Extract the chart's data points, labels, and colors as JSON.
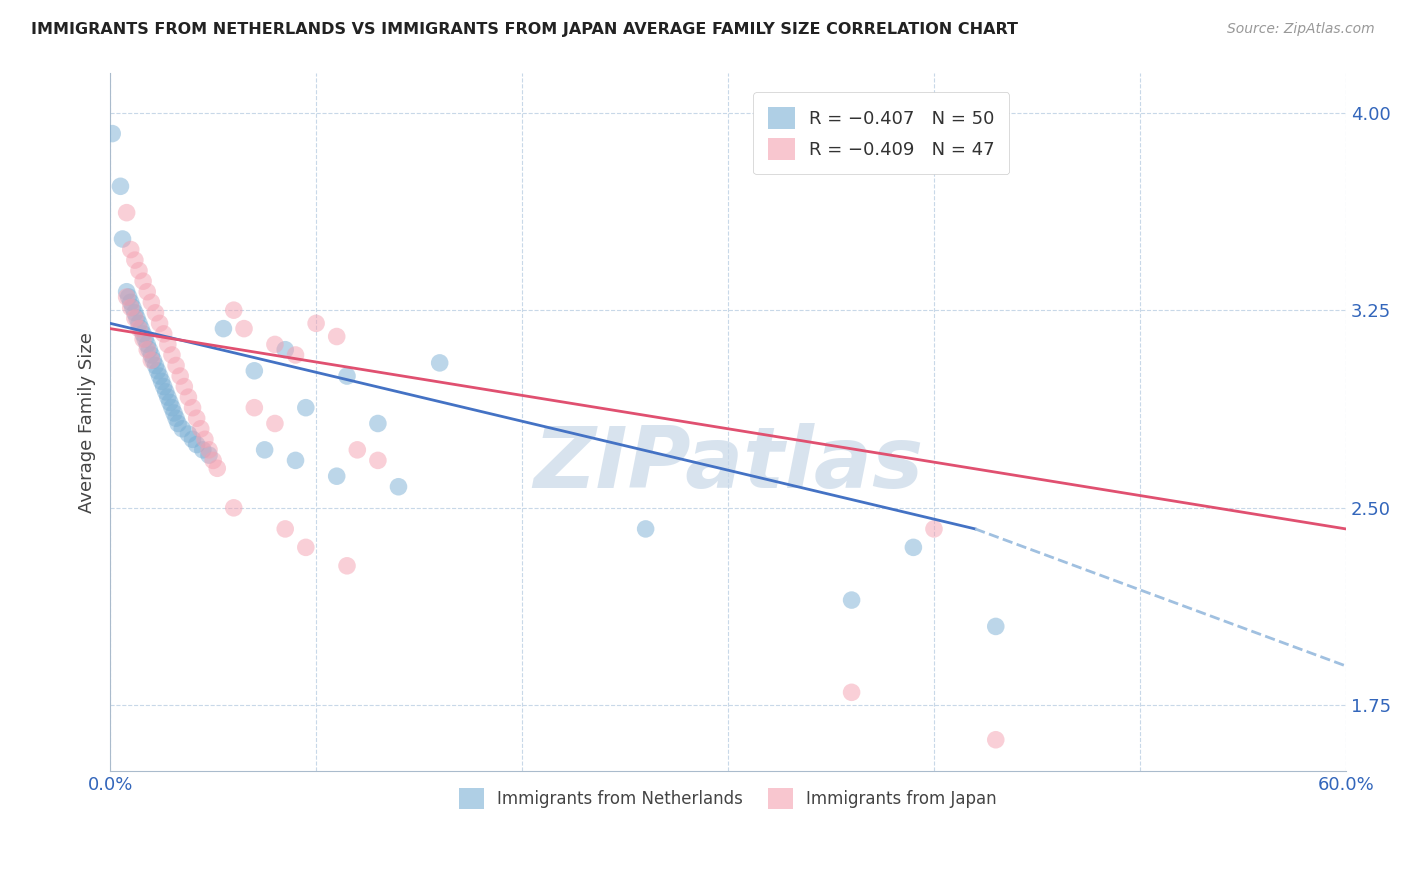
{
  "title": "IMMIGRANTS FROM NETHERLANDS VS IMMIGRANTS FROM JAPAN AVERAGE FAMILY SIZE CORRELATION CHART",
  "source": "Source: ZipAtlas.com",
  "ylabel": "Average Family Size",
  "netherlands_color": "#7BAFD4",
  "japan_color": "#F4A0B0",
  "netherlands_line_color": "#4472C4",
  "japan_line_color": "#E05070",
  "dashed_line_color": "#A0C0E0",
  "watermark": "ZIPatlas",
  "netherlands_scatter": [
    [
      0.001,
      3.92
    ],
    [
      0.005,
      3.72
    ],
    [
      0.006,
      3.52
    ],
    [
      0.008,
      3.32
    ],
    [
      0.009,
      3.3
    ],
    [
      0.01,
      3.28
    ],
    [
      0.011,
      3.26
    ],
    [
      0.012,
      3.24
    ],
    [
      0.013,
      3.22
    ],
    [
      0.014,
      3.2
    ],
    [
      0.015,
      3.18
    ],
    [
      0.016,
      3.16
    ],
    [
      0.017,
      3.14
    ],
    [
      0.018,
      3.12
    ],
    [
      0.019,
      3.1
    ],
    [
      0.02,
      3.08
    ],
    [
      0.021,
      3.06
    ],
    [
      0.022,
      3.04
    ],
    [
      0.023,
      3.02
    ],
    [
      0.024,
      3.0
    ],
    [
      0.025,
      2.98
    ],
    [
      0.026,
      2.96
    ],
    [
      0.027,
      2.94
    ],
    [
      0.028,
      2.92
    ],
    [
      0.029,
      2.9
    ],
    [
      0.03,
      2.88
    ],
    [
      0.031,
      2.86
    ],
    [
      0.032,
      2.84
    ],
    [
      0.033,
      2.82
    ],
    [
      0.035,
      2.8
    ],
    [
      0.038,
      2.78
    ],
    [
      0.04,
      2.76
    ],
    [
      0.042,
      2.74
    ],
    [
      0.045,
      2.72
    ],
    [
      0.048,
      2.7
    ],
    [
      0.055,
      3.18
    ],
    [
      0.07,
      3.02
    ],
    [
      0.085,
      3.1
    ],
    [
      0.115,
      3.0
    ],
    [
      0.16,
      3.05
    ],
    [
      0.095,
      2.88
    ],
    [
      0.13,
      2.82
    ],
    [
      0.075,
      2.72
    ],
    [
      0.09,
      2.68
    ],
    [
      0.11,
      2.62
    ],
    [
      0.14,
      2.58
    ],
    [
      0.26,
      2.42
    ],
    [
      0.39,
      2.35
    ],
    [
      0.36,
      2.15
    ],
    [
      0.43,
      2.05
    ]
  ],
  "japan_scatter": [
    [
      0.008,
      3.62
    ],
    [
      0.01,
      3.48
    ],
    [
      0.012,
      3.44
    ],
    [
      0.014,
      3.4
    ],
    [
      0.016,
      3.36
    ],
    [
      0.018,
      3.32
    ],
    [
      0.02,
      3.28
    ],
    [
      0.022,
      3.24
    ],
    [
      0.024,
      3.2
    ],
    [
      0.026,
      3.16
    ],
    [
      0.028,
      3.12
    ],
    [
      0.03,
      3.08
    ],
    [
      0.032,
      3.04
    ],
    [
      0.034,
      3.0
    ],
    [
      0.036,
      2.96
    ],
    [
      0.038,
      2.92
    ],
    [
      0.04,
      2.88
    ],
    [
      0.042,
      2.84
    ],
    [
      0.044,
      2.8
    ],
    [
      0.046,
      2.76
    ],
    [
      0.048,
      2.72
    ],
    [
      0.05,
      2.68
    ],
    [
      0.052,
      2.65
    ],
    [
      0.008,
      3.3
    ],
    [
      0.01,
      3.26
    ],
    [
      0.012,
      3.22
    ],
    [
      0.014,
      3.18
    ],
    [
      0.016,
      3.14
    ],
    [
      0.018,
      3.1
    ],
    [
      0.02,
      3.06
    ],
    [
      0.06,
      3.25
    ],
    [
      0.065,
      3.18
    ],
    [
      0.08,
      3.12
    ],
    [
      0.09,
      3.08
    ],
    [
      0.1,
      3.2
    ],
    [
      0.11,
      3.15
    ],
    [
      0.07,
      2.88
    ],
    [
      0.08,
      2.82
    ],
    [
      0.12,
      2.72
    ],
    [
      0.13,
      2.68
    ],
    [
      0.06,
      2.5
    ],
    [
      0.085,
      2.42
    ],
    [
      0.095,
      2.35
    ],
    [
      0.115,
      2.28
    ],
    [
      0.4,
      2.42
    ],
    [
      0.36,
      1.8
    ],
    [
      0.43,
      1.62
    ]
  ],
  "nl_line": {
    "x0": 0.0,
    "y0": 3.2,
    "x1": 0.42,
    "y1": 2.42,
    "xdash0": 0.42,
    "ydash0": 2.42,
    "xdash1": 0.6,
    "ydash1": 1.9
  },
  "jp_line": {
    "x0": 0.0,
    "y0": 3.18,
    "x1": 0.6,
    "y1": 2.42
  },
  "xlim": [
    0.0,
    0.6
  ],
  "ylim": [
    1.5,
    4.15
  ],
  "figsize": [
    14.06,
    8.92
  ],
  "dpi": 100
}
